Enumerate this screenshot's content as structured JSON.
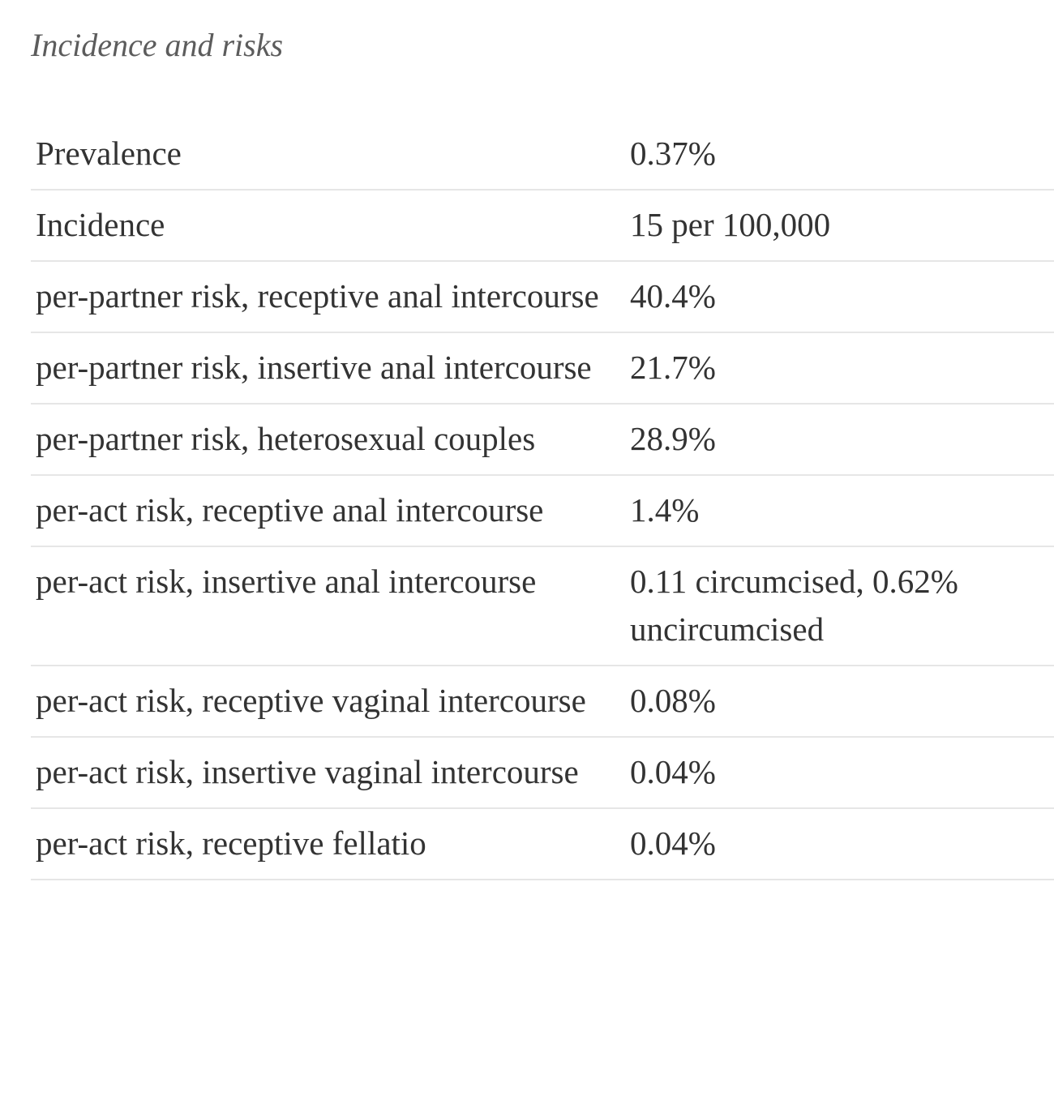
{
  "caption": "Incidence and risks",
  "rows": [
    {
      "label": "Prevalence",
      "value": "0.37%"
    },
    {
      "label": "Incidence",
      "value": "15 per 100,000"
    },
    {
      "label": "per-partner risk, receptive anal intercourse",
      "value": "40.4%"
    },
    {
      "label": "per-partner risk, insertive anal intercourse",
      "value": "21.7%"
    },
    {
      "label": "per-partner risk, heterosexual couples",
      "value": "28.9%"
    },
    {
      "label": "per-act risk, receptive anal intercourse",
      "value": "1.4%"
    },
    {
      "label": "per-act risk, insertive anal intercourse",
      "value": "0.11 circumcised, 0.62% uncircumcised"
    },
    {
      "label": "per-act risk, receptive vaginal intercourse",
      "value": "0.08%"
    },
    {
      "label": "per-act risk, insertive vaginal intercourse",
      "value": "0.04%"
    },
    {
      "label": "per-act risk, receptive fellatio",
      "value": "0.04%"
    }
  ]
}
